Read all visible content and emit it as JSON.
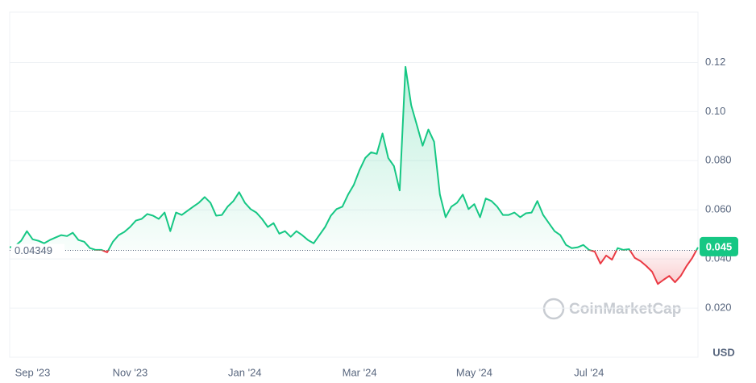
{
  "chart_data": {
    "type": "line",
    "categories": [
      null,
      null,
      null,
      null,
      "Sep '23",
      null,
      null,
      null,
      null,
      null,
      null,
      null,
      null,
      null,
      null,
      null,
      null,
      null,
      null,
      null,
      null,
      "Nov '23",
      null,
      null,
      null,
      null,
      null,
      null,
      null,
      null,
      null,
      null,
      null,
      null,
      null,
      null,
      null,
      null,
      null,
      null,
      null,
      "Jan '24",
      null,
      null,
      null,
      null,
      null,
      null,
      null,
      null,
      null,
      null,
      null,
      null,
      null,
      null,
      null,
      null,
      null,
      null,
      null,
      "Mar '24",
      null,
      null,
      null,
      null,
      null,
      null,
      null,
      null,
      null,
      null,
      null,
      null,
      null,
      null,
      null,
      null,
      null,
      null,
      null,
      "May '24",
      null,
      null,
      null,
      null,
      null,
      null,
      null,
      null,
      null,
      null,
      null,
      null,
      null,
      null,
      null,
      null,
      null,
      null,
      null,
      "Jul '24",
      null,
      null,
      null,
      null,
      null,
      null,
      null,
      null,
      null,
      null,
      null,
      null,
      null,
      null,
      null,
      null,
      null,
      null,
      null
    ],
    "values": [
      0.0447,
      0.0454,
      0.0474,
      0.0513,
      0.048,
      0.0474,
      0.0464,
      0.0477,
      0.0487,
      0.0497,
      0.0493,
      0.0507,
      0.0477,
      0.047,
      0.0444,
      0.0437,
      0.0437,
      0.0427,
      0.047,
      0.0497,
      0.051,
      0.053,
      0.0556,
      0.0563,
      0.0583,
      0.0576,
      0.0563,
      0.0589,
      0.0513,
      0.0589,
      0.0579,
      0.0596,
      0.0613,
      0.0629,
      0.0652,
      0.0629,
      0.0576,
      0.0579,
      0.0613,
      0.0636,
      0.0672,
      0.0629,
      0.0603,
      0.0589,
      0.0563,
      0.053,
      0.0546,
      0.0503,
      0.0513,
      0.049,
      0.0513,
      0.0497,
      0.0477,
      0.0464,
      0.0497,
      0.053,
      0.0576,
      0.0603,
      0.0613,
      0.0662,
      0.0702,
      0.0762,
      0.0811,
      0.0834,
      0.0828,
      0.0911,
      0.0811,
      0.0778,
      0.0679,
      0.1182,
      0.1026,
      0.0944,
      0.0861,
      0.0927,
      0.0877,
      0.0662,
      0.057,
      0.0613,
      0.0629,
      0.0662,
      0.0603,
      0.0623,
      0.057,
      0.0646,
      0.0636,
      0.0613,
      0.0579,
      0.0579,
      0.0589,
      0.057,
      0.0586,
      0.0589,
      0.0636,
      0.0579,
      0.0546,
      0.0513,
      0.0497,
      0.0457,
      0.0444,
      0.0447,
      0.0457,
      0.0437,
      0.043,
      0.0381,
      0.0414,
      0.0397,
      0.0444,
      0.0437,
      0.044,
      0.0404,
      0.0391,
      0.0371,
      0.0348,
      0.0298,
      0.0315,
      0.0331,
      0.0305,
      0.0331,
      0.0371,
      0.0404,
      0.0447
    ],
    "up_color": "#16c784",
    "down_color": "#ea3943",
    "baseline": 0.04349,
    "last_price": 0.045,
    "ylim": [
      0,
      0.1405
    ],
    "yticks": [
      {
        "value": 0.02,
        "label": "0.020"
      },
      {
        "value": 0.04,
        "label": "0.040"
      },
      {
        "value": 0.06,
        "label": "0.060"
      },
      {
        "value": 0.08,
        "label": "0.080"
      },
      {
        "value": 0.1,
        "label": "0.10"
      },
      0.12
    ],
    "grid": true,
    "y_unit": "USD",
    "watermark": "CoinMarketCap"
  }
}
